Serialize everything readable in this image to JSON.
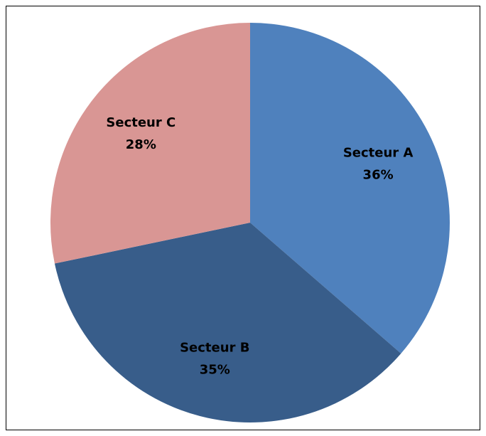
{
  "chart_data": {
    "type": "pie",
    "categories": [
      "Secteur A",
      "Secteur B",
      "Secteur C"
    ],
    "values": [
      36,
      35,
      28
    ],
    "value_labels": [
      "36%",
      "35%",
      "28%"
    ],
    "colors": [
      "#4f81bd",
      "#385d8a",
      "#d99694"
    ]
  }
}
